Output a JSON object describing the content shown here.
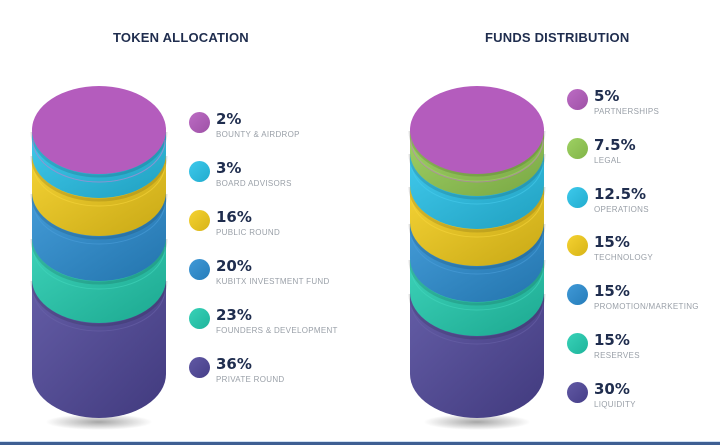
{
  "chart_data": [
    {
      "type": "stacked-cylinder",
      "title": "TOKEN ALLOCATION",
      "unit": "%",
      "segments": [
        {
          "label": "BOUNTY & AIRDROP",
          "value": 2,
          "display": "2%",
          "color": "#b45cbd"
        },
        {
          "label": "BOARD ADVISORS",
          "value": 3,
          "display": "3%",
          "color": "#27c3ea"
        },
        {
          "label": "PUBLIC ROUND",
          "value": 16,
          "display": "16%",
          "color": "#f4cd1a"
        },
        {
          "label": "KUBITX INVESTMENT FUND",
          "value": 20,
          "display": "20%",
          "color": "#2b8ed3"
        },
        {
          "label": "FOUNDERS & DEVELOPMENT",
          "value": 23,
          "display": "23%",
          "color": "#22cdb0"
        },
        {
          "label": "PRIVATE ROUND",
          "value": 36,
          "display": "36%",
          "color": "#4f479a"
        }
      ]
    },
    {
      "type": "stacked-cylinder",
      "title": "FUNDS DISTRIBUTION",
      "unit": "%",
      "segments": [
        {
          "label": "PARTNERSHIPS",
          "value": 5,
          "display": "5%",
          "color": "#b45cbd"
        },
        {
          "label": "LEGAL",
          "value": 7.5,
          "display": "7.5%",
          "color": "#93cc52"
        },
        {
          "label": "OPERATIONS",
          "value": 12.5,
          "display": "12.5%",
          "color": "#27c3ea"
        },
        {
          "label": "TECHNOLOGY",
          "value": 15,
          "display": "15%",
          "color": "#f4cd1a"
        },
        {
          "label": "PROMOTION/MARKETING",
          "value": 15,
          "display": "15%",
          "color": "#2b8ed3"
        },
        {
          "label": "RESERVES",
          "value": 15,
          "display": "15%",
          "color": "#22cdb0"
        },
        {
          "label": "LIQUIDITY",
          "value": 30,
          "display": "30%",
          "color": "#4f479a"
        }
      ]
    }
  ]
}
